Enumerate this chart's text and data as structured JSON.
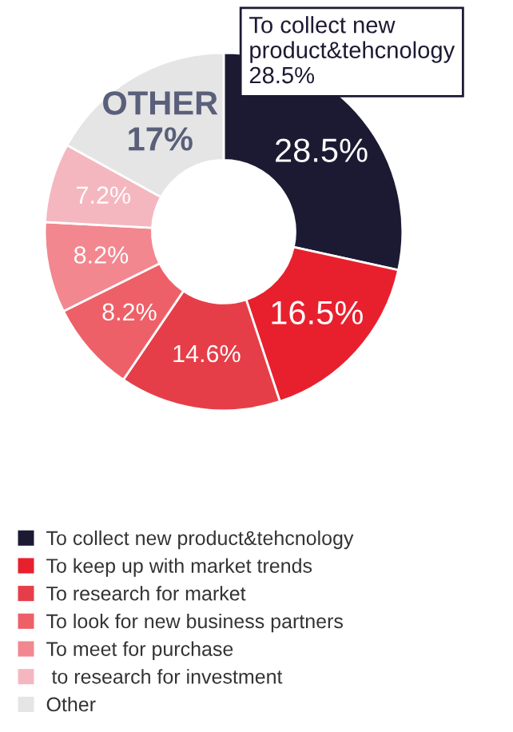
{
  "chart_data": {
    "type": "donut",
    "categories": [
      "To collect new product&tehcnology",
      "To keep up with market trends",
      "To research for market",
      "To look for new business partners",
      "To meet for purchase",
      " to research for investment",
      "Other"
    ],
    "values": [
      28.5,
      16.5,
      14.6,
      8.2,
      8.2,
      7.2,
      17
    ],
    "colors": [
      "#1c1a33",
      "#e8202e",
      "#e63e48",
      "#ee6068",
      "#f2878f",
      "#f5b7bf",
      "#e5e5e5"
    ],
    "value_labels": [
      "28.5%",
      "16.5%",
      "14.6%",
      "8.2%",
      "8.2%",
      "7.2%",
      "OTHER\n17%"
    ],
    "annotations": [
      "To collect new\nproduct&tehcnology\n28.5%"
    ],
    "legend": "bottom"
  }
}
